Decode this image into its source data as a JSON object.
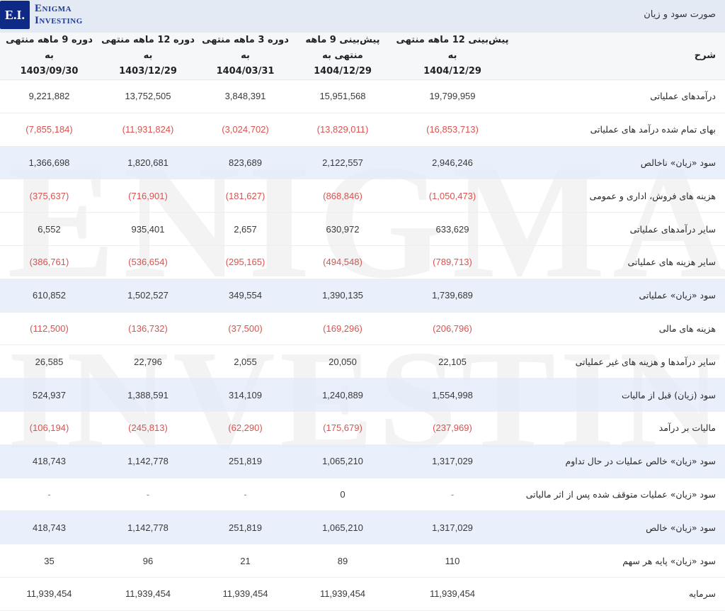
{
  "header": {
    "logo_mark": "E.I.",
    "logo_line1": "Enigma",
    "logo_line2": "Investing",
    "page_title": "صورت سود و زیان"
  },
  "watermark": {
    "line1": "ENIGMA",
    "line2": "INVESTING"
  },
  "colors": {
    "negative": "#d9534f",
    "highlight_row": "#e1eafa",
    "brand": "#0f2a86",
    "topbar": "#e4eaf4"
  },
  "table": {
    "columns": [
      {
        "label": "شرح"
      },
      {
        "line1": "پیش‌بینی 12 ماهه منتهی به",
        "line2": "1404/12/29"
      },
      {
        "line1": "پیش‌بینی 9 ماهه منتهی به",
        "line2": "1404/12/29"
      },
      {
        "line1": "دوره 3 ماهه منتهی به",
        "line2": "1404/03/31"
      },
      {
        "line1": "دوره 12 ماهه منتهی به",
        "line2": "1403/12/29"
      },
      {
        "line1": "دوره 9 ماهه منتهی به",
        "line2": "1403/09/30"
      }
    ],
    "rows": [
      {
        "label": "درآمدهای عملیاتی",
        "highlight": false,
        "values": [
          "19,799,959",
          "15,951,568",
          "3,848,391",
          "13,752,505",
          "9,221,882"
        ]
      },
      {
        "label": "بهای تمام شده درآمد های عملیاتی",
        "highlight": false,
        "values": [
          "(16,853,713)",
          "(13,829,011)",
          "(3,024,702)",
          "(11,931,824)",
          "(7,855,184)"
        ]
      },
      {
        "label": "سود «زیان» ناخالص",
        "highlight": true,
        "values": [
          "2,946,246",
          "2,122,557",
          "823,689",
          "1,820,681",
          "1,366,698"
        ]
      },
      {
        "label": "هزینه های فروش، اداری و عمومی",
        "highlight": false,
        "values": [
          "(1,050,473)",
          "(868,846)",
          "(181,627)",
          "(716,901)",
          "(375,637)"
        ]
      },
      {
        "label": "سایر درآمدهای عملیاتی",
        "highlight": false,
        "values": [
          "633,629",
          "630,972",
          "2,657",
          "935,401",
          "6,552"
        ]
      },
      {
        "label": "سایر هزینه های عملیاتی",
        "highlight": false,
        "values": [
          "(789,713)",
          "(494,548)",
          "(295,165)",
          "(536,654)",
          "(386,761)"
        ]
      },
      {
        "label": "سود «زیان» عملیاتی",
        "highlight": true,
        "values": [
          "1,739,689",
          "1,390,135",
          "349,554",
          "1,502,527",
          "610,852"
        ]
      },
      {
        "label": "هزینه های مالی",
        "highlight": false,
        "values": [
          "(206,796)",
          "(169,296)",
          "(37,500)",
          "(136,732)",
          "(112,500)"
        ]
      },
      {
        "label": "سایر درآمدها و هزینه های غیر عملیاتی",
        "highlight": false,
        "values": [
          "22,105",
          "20,050",
          "2,055",
          "22,796",
          "26,585"
        ]
      },
      {
        "label": "سود (زیان) قبل از مالیات",
        "highlight": true,
        "values": [
          "1,554,998",
          "1,240,889",
          "314,109",
          "1,388,591",
          "524,937"
        ]
      },
      {
        "label": "مالیات بر درآمد",
        "highlight": false,
        "values": [
          "(237,969)",
          "(175,679)",
          "(62,290)",
          "(245,813)",
          "(106,194)"
        ]
      },
      {
        "label": "سود «زیان» خالص عملیات در حال تداوم",
        "highlight": true,
        "values": [
          "1,317,029",
          "1,065,210",
          "251,819",
          "1,142,778",
          "418,743"
        ]
      },
      {
        "label": "سود «زیان» عملیات متوقف شده پس از اثر مالیاتی",
        "highlight": false,
        "values": [
          "-",
          "0",
          "-",
          "-",
          "-"
        ]
      },
      {
        "label": "سود «زیان» خالص",
        "highlight": true,
        "values": [
          "1,317,029",
          "1,065,210",
          "251,819",
          "1,142,778",
          "418,743"
        ]
      },
      {
        "label": "سود «زیان» پایه هر سهم",
        "highlight": false,
        "values": [
          "110",
          "89",
          "21",
          "96",
          "35"
        ]
      },
      {
        "label": "سرمایه",
        "highlight": false,
        "values": [
          "11,939,454",
          "11,939,454",
          "11,939,454",
          "11,939,454",
          "11,939,454"
        ]
      }
    ]
  }
}
